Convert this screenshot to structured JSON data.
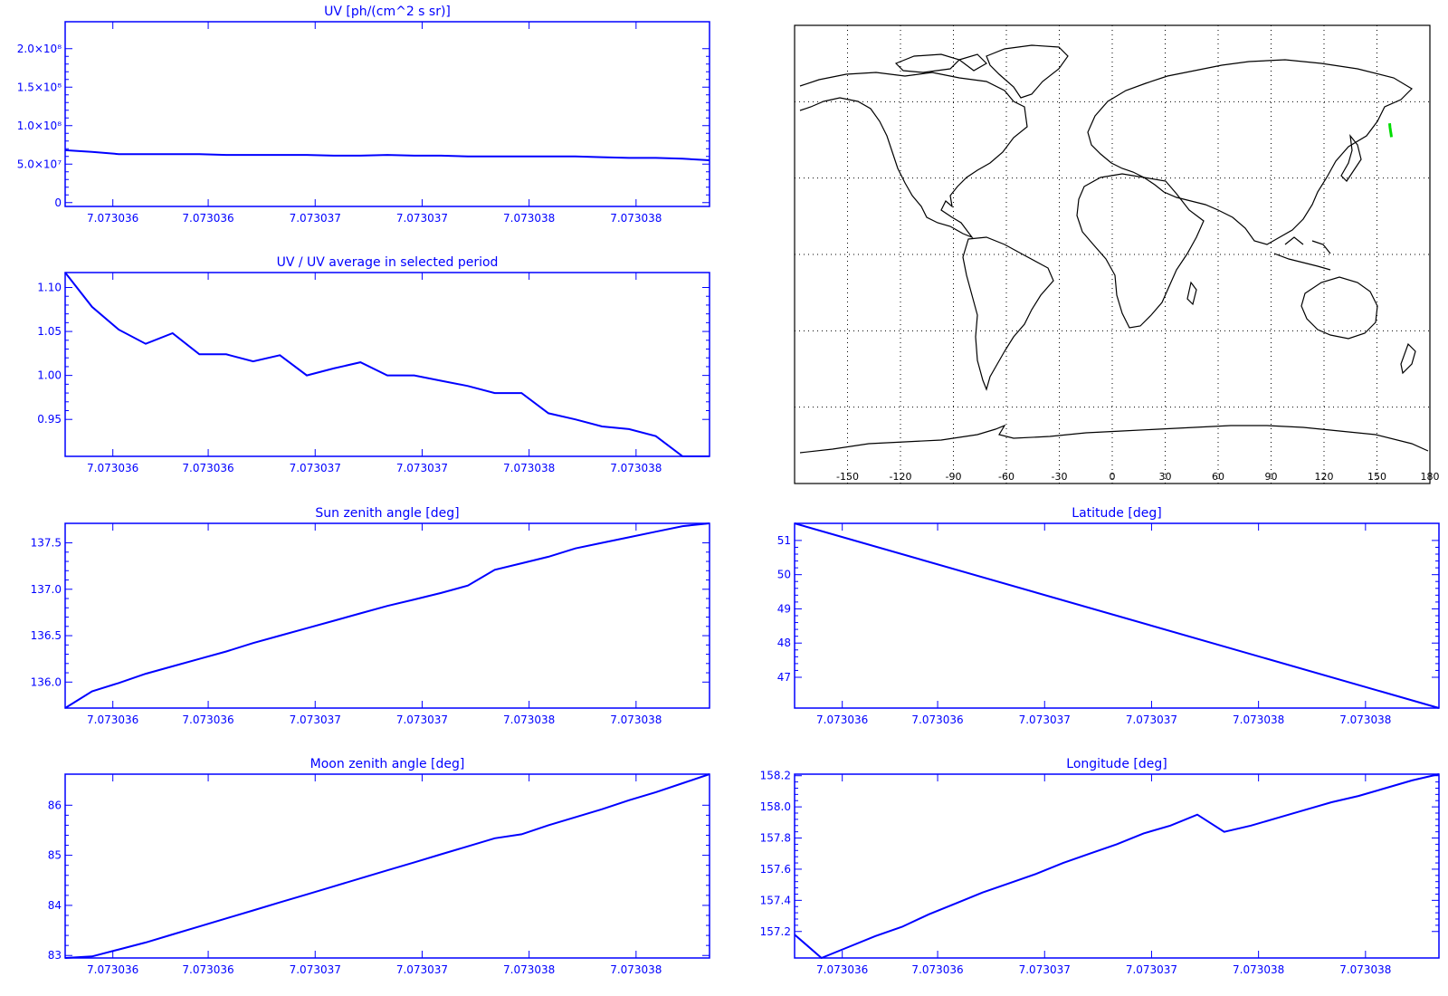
{
  "chart_data": [
    {
      "type": "line",
      "title": "UV [ph/(cm^2 s sr)]",
      "x_tick_labels": [
        "7.073036",
        "7.073036",
        "7.073037",
        "7.073037",
        "7.073038",
        "7.073038"
      ],
      "y_tick_labels": [
        "0",
        "5.0×10⁷",
        "1.0×10⁸",
        "1.5×10⁸",
        "2.0×10⁸"
      ],
      "y_ticks": [
        0,
        50000000,
        100000000,
        150000000,
        200000000
      ],
      "ylim": [
        -5000000,
        235000000
      ],
      "x": [
        0,
        1,
        2,
        3,
        4,
        5,
        6,
        7,
        8,
        9,
        10,
        11,
        12,
        13,
        14,
        15,
        16,
        17,
        18,
        19,
        20,
        21,
        22,
        23,
        24
      ],
      "values": [
        68000000,
        66000000,
        63000000,
        63000000,
        63000000,
        63000000,
        62000000,
        62000000,
        62000000,
        62000000,
        61000000,
        61000000,
        62000000,
        61000000,
        61000000,
        60000000,
        60000000,
        60000000,
        60000000,
        60000000,
        59000000,
        58000000,
        58000000,
        57000000,
        55000000
      ]
    },
    {
      "type": "line",
      "title": "UV / UV average in selected period",
      "x_tick_labels": [
        "7.073036",
        "7.073036",
        "7.073037",
        "7.073037",
        "7.073038",
        "7.073038"
      ],
      "y_tick_labels": [
        "0.95",
        "1.00",
        "1.05",
        "1.10"
      ],
      "y_ticks": [
        0.95,
        1.0,
        1.05,
        1.1
      ],
      "ylim": [
        0.908,
        1.117
      ],
      "x": [
        0,
        1,
        2,
        3,
        4,
        5,
        6,
        7,
        8,
        9,
        10,
        11,
        12,
        13,
        14,
        15,
        16,
        17,
        18,
        19,
        20,
        21,
        22,
        23,
        24
      ],
      "values": [
        1.117,
        1.078,
        1.052,
        1.036,
        1.048,
        1.024,
        1.024,
        1.016,
        1.023,
        1.0,
        1.008,
        1.015,
        1.0,
        1.0,
        0.994,
        0.988,
        0.98,
        0.98,
        0.957,
        0.95,
        0.942,
        0.939,
        0.931,
        0.908,
        0.908
      ]
    },
    {
      "type": "line",
      "title": "Sun zenith angle [deg]",
      "x_tick_labels": [
        "7.073036",
        "7.073036",
        "7.073037",
        "7.073037",
        "7.073038",
        "7.073038"
      ],
      "y_tick_labels": [
        "136.0",
        "136.5",
        "137.0",
        "137.5"
      ],
      "y_ticks": [
        136.0,
        136.5,
        137.0,
        137.5
      ],
      "ylim": [
        135.72,
        137.71
      ],
      "x": [
        0,
        1,
        2,
        3,
        4,
        5,
        6,
        7,
        8,
        9,
        10,
        11,
        12,
        13,
        14,
        15,
        16,
        17,
        18,
        19,
        20,
        21,
        22,
        23,
        24
      ],
      "values": [
        135.72,
        135.9,
        135.99,
        136.09,
        136.17,
        136.25,
        136.33,
        136.42,
        136.5,
        136.58,
        136.66,
        136.74,
        136.82,
        136.89,
        136.96,
        137.04,
        137.21,
        137.28,
        137.35,
        137.44,
        137.5,
        137.56,
        137.62,
        137.68,
        137.71
      ]
    },
    {
      "type": "line",
      "title": "Latitude [deg]",
      "x_tick_labels": [
        "7.073036",
        "7.073036",
        "7.073037",
        "7.073037",
        "7.073038",
        "7.073038"
      ],
      "y_tick_labels": [
        "47",
        "48",
        "49",
        "50",
        "51"
      ],
      "y_ticks": [
        47,
        48,
        49,
        50,
        51
      ],
      "ylim": [
        46.1,
        51.5
      ],
      "x": [
        0,
        24
      ],
      "values": [
        51.5,
        46.1
      ]
    },
    {
      "type": "line",
      "title": "Moon zenith angle [deg]",
      "x_tick_labels": [
        "7.073036",
        "7.073036",
        "7.073037",
        "7.073037",
        "7.073038",
        "7.073038"
      ],
      "y_tick_labels": [
        "83",
        "84",
        "85",
        "86"
      ],
      "y_ticks": [
        83,
        84,
        85,
        86
      ],
      "ylim": [
        82.95,
        86.62
      ],
      "x": [
        0,
        1,
        2,
        3,
        4,
        5,
        6,
        7,
        8,
        9,
        10,
        11,
        12,
        13,
        14,
        15,
        16,
        17,
        18,
        19,
        20,
        21,
        22,
        23,
        24
      ],
      "values": [
        82.95,
        82.98,
        83.12,
        83.26,
        83.42,
        83.58,
        83.74,
        83.9,
        84.06,
        84.22,
        84.38,
        84.54,
        84.7,
        84.86,
        85.02,
        85.18,
        85.34,
        85.42,
        85.6,
        85.76,
        85.92,
        86.1,
        86.26,
        86.44,
        86.62
      ]
    },
    {
      "type": "line",
      "title": "Longitude [deg]",
      "x_tick_labels": [
        "7.073036",
        "7.073036",
        "7.073037",
        "7.073037",
        "7.073038",
        "7.073038"
      ],
      "y_tick_labels": [
        "157.2",
        "157.4",
        "157.6",
        "157.8",
        "158.0",
        "158.2"
      ],
      "y_ticks": [
        157.2,
        157.4,
        157.6,
        157.8,
        158.0,
        158.2
      ],
      "ylim": [
        157.03,
        158.21
      ],
      "x": [
        0,
        1,
        2,
        3,
        4,
        5,
        6,
        7,
        8,
        9,
        10,
        11,
        12,
        13,
        14,
        15,
        16,
        17,
        18,
        19,
        20,
        21,
        22,
        23,
        24
      ],
      "values": [
        157.18,
        157.03,
        157.1,
        157.17,
        157.23,
        157.31,
        157.38,
        157.45,
        157.51,
        157.57,
        157.64,
        157.7,
        157.76,
        157.83,
        157.88,
        157.95,
        157.84,
        157.88,
        157.93,
        157.98,
        158.03,
        158.07,
        158.12,
        158.17,
        158.21
      ]
    }
  ],
  "map": {
    "x_tick_labels": [
      "-150",
      "-120",
      "-90",
      "-60",
      "-30",
      "0",
      "30",
      "60",
      "90",
      "120",
      "150",
      "180"
    ],
    "x_ticks": [
      -150,
      -120,
      -90,
      -60,
      -30,
      0,
      30,
      60,
      90,
      120,
      150,
      180
    ],
    "xlim": [
      -180,
      180
    ],
    "ylim": [
      -90,
      90
    ],
    "track_color": "#00dd00",
    "track": [
      [
        157.18,
        51.5
      ],
      [
        157.4,
        50.0
      ],
      [
        157.7,
        48.5
      ],
      [
        158.0,
        47.2
      ],
      [
        158.21,
        46.1
      ]
    ]
  }
}
